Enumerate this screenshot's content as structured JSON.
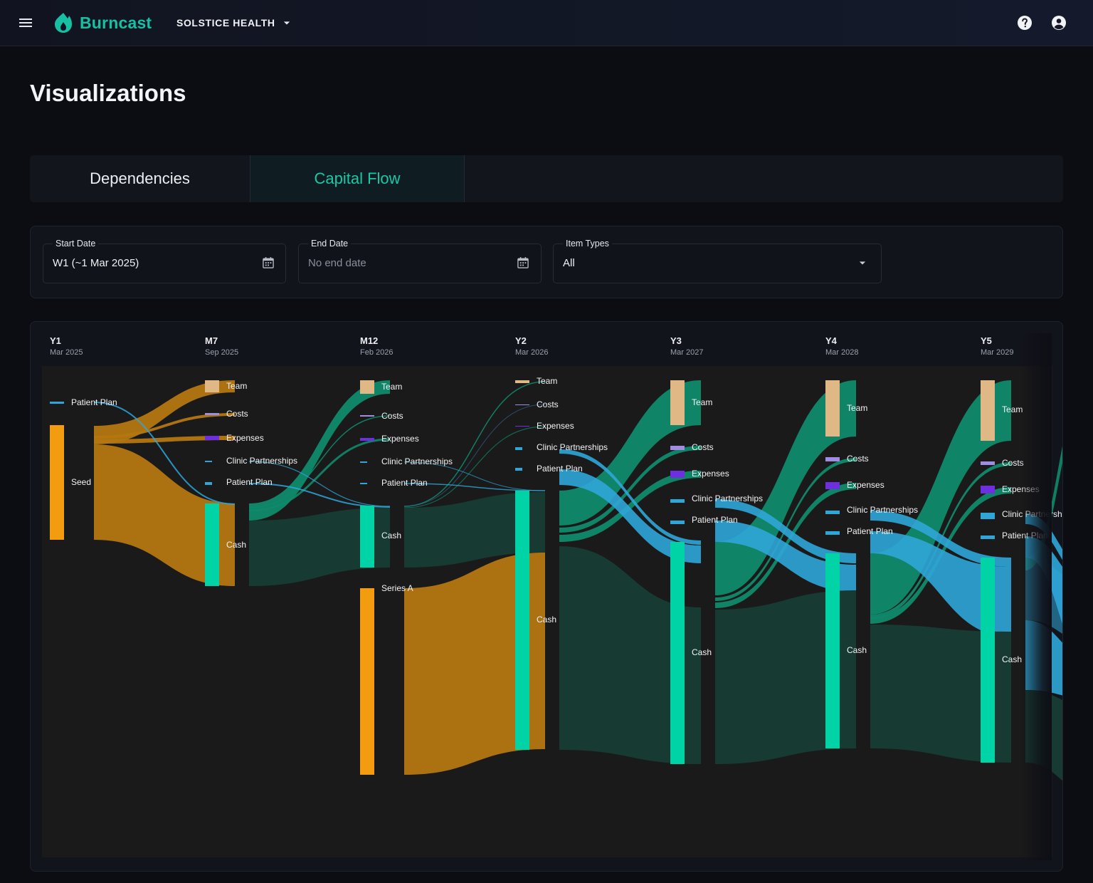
{
  "app": {
    "name": "Burncast",
    "org": "SOLSTICE HEALTH"
  },
  "colors": {
    "accent": "#17c0a2",
    "funding": "#f39c0f",
    "cash": "#00d3a6",
    "team": "#e0b886",
    "costs": "#a08ce0",
    "expenses": "#6e2fe0",
    "revenue": "#2fa6d8"
  },
  "page": {
    "title": "Visualizations"
  },
  "tabs": [
    {
      "label": "Dependencies"
    },
    {
      "label": "Capital Flow",
      "active": true
    }
  ],
  "filters": {
    "start": {
      "label": "Start Date",
      "value": "W1 (~1 Mar 2025)"
    },
    "end": {
      "label": "End Date",
      "placeholder": "No end date"
    },
    "types": {
      "label": "Item Types",
      "value": "All"
    }
  },
  "chart_data": {
    "type": "sankey",
    "periods": [
      {
        "label": "Y1",
        "date": "Mar 2025"
      },
      {
        "label": "M7",
        "date": "Sep 2025"
      },
      {
        "label": "M12",
        "date": "Feb 2026"
      },
      {
        "label": "Y2",
        "date": "Mar 2026"
      },
      {
        "label": "Y3",
        "date": "Mar 2027"
      },
      {
        "label": "Y4",
        "date": "Mar 2028"
      },
      {
        "label": "Y5",
        "date": "Mar 2029"
      }
    ],
    "nodes": [
      {
        "period": 0,
        "label": "Patient Plan",
        "type": "revenue"
      },
      {
        "period": 0,
        "label": "Seed",
        "type": "funding"
      },
      {
        "period": 1,
        "label": "Team",
        "type": "team"
      },
      {
        "period": 1,
        "label": "Costs",
        "type": "costs"
      },
      {
        "period": 1,
        "label": "Expenses",
        "type": "expenses"
      },
      {
        "period": 1,
        "label": "Clinic Partnerships",
        "type": "revenue"
      },
      {
        "period": 1,
        "label": "Patient Plan",
        "type": "revenue"
      },
      {
        "period": 1,
        "label": "Cash",
        "type": "cash"
      },
      {
        "period": 2,
        "label": "Team",
        "type": "team"
      },
      {
        "period": 2,
        "label": "Costs",
        "type": "costs"
      },
      {
        "period": 2,
        "label": "Expenses",
        "type": "expenses"
      },
      {
        "period": 2,
        "label": "Clinic Partnerships",
        "type": "revenue"
      },
      {
        "period": 2,
        "label": "Patient Plan",
        "type": "revenue"
      },
      {
        "period": 2,
        "label": "Cash",
        "type": "cash"
      },
      {
        "period": 2,
        "label": "Series A",
        "type": "funding"
      },
      {
        "period": 3,
        "label": "Team",
        "type": "team"
      },
      {
        "period": 3,
        "label": "Costs",
        "type": "costs"
      },
      {
        "period": 3,
        "label": "Expenses",
        "type": "expenses"
      },
      {
        "period": 3,
        "label": "Clinic Partnerships",
        "type": "revenue"
      },
      {
        "period": 3,
        "label": "Patient Plan",
        "type": "revenue"
      },
      {
        "period": 3,
        "label": "Cash",
        "type": "cash"
      },
      {
        "period": 4,
        "label": "Team",
        "type": "team"
      },
      {
        "period": 4,
        "label": "Costs",
        "type": "costs"
      },
      {
        "period": 4,
        "label": "Expenses",
        "type": "expenses"
      },
      {
        "period": 4,
        "label": "Clinic Partnerships",
        "type": "revenue"
      },
      {
        "period": 4,
        "label": "Patient Plan",
        "type": "revenue"
      },
      {
        "period": 4,
        "label": "Cash",
        "type": "cash"
      },
      {
        "period": 5,
        "label": "Team",
        "type": "team"
      },
      {
        "period": 5,
        "label": "Costs",
        "type": "costs"
      },
      {
        "period": 5,
        "label": "Expenses",
        "type": "expenses"
      },
      {
        "period": 5,
        "label": "Clinic Partnerships",
        "type": "revenue"
      },
      {
        "period": 5,
        "label": "Patient Plan",
        "type": "revenue"
      },
      {
        "period": 5,
        "label": "Cash",
        "type": "cash"
      },
      {
        "period": 6,
        "label": "Team",
        "type": "team"
      },
      {
        "period": 6,
        "label": "Costs",
        "type": "costs"
      },
      {
        "period": 6,
        "label": "Expenses",
        "type": "expenses"
      },
      {
        "period": 6,
        "label": "Clinic Partnerships",
        "type": "revenue"
      },
      {
        "period": 6,
        "label": "Patient Plan",
        "type": "revenue"
      },
      {
        "period": 6,
        "label": "Cash",
        "type": "cash"
      }
    ]
  }
}
